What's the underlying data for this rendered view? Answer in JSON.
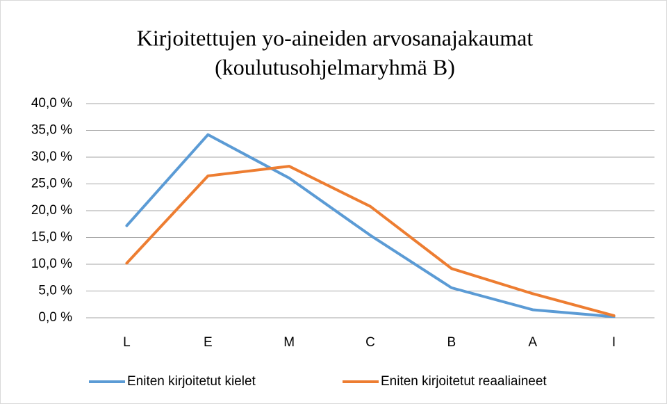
{
  "chart_data": {
    "type": "line",
    "title": [
      "Kirjoitettujen yo-aineiden arvosanajakaumat",
      "(koulutusohjelmaryhmä B)"
    ],
    "categories": [
      "L",
      "E",
      "M",
      "C",
      "B",
      "A",
      "I"
    ],
    "series": [
      {
        "name": "Eniten kirjoitetut kielet",
        "color": "#5b9bd5",
        "values": [
          17.2,
          34.2,
          26.1,
          15.4,
          5.6,
          1.5,
          0.2
        ]
      },
      {
        "name": "Eniten kirjoitetut reaaliaineet",
        "color": "#ed7d31",
        "values": [
          10.2,
          26.5,
          28.3,
          20.8,
          9.2,
          4.5,
          0.4
        ]
      }
    ],
    "ylim": [
      0,
      40
    ],
    "yticks": [
      {
        "value": 0,
        "label": "0,0 %"
      },
      {
        "value": 5,
        "label": "5,0 %"
      },
      {
        "value": 10,
        "label": "10,0 %"
      },
      {
        "value": 15,
        "label": "15,0 %"
      },
      {
        "value": 20,
        "label": "20,0 %"
      },
      {
        "value": 25,
        "label": "25,0 %"
      },
      {
        "value": 30,
        "label": "30,0 %"
      },
      {
        "value": 35,
        "label": "35,0 %"
      },
      {
        "value": 40,
        "label": "40,0 %"
      }
    ],
    "grid": true,
    "legend": "bottom"
  }
}
